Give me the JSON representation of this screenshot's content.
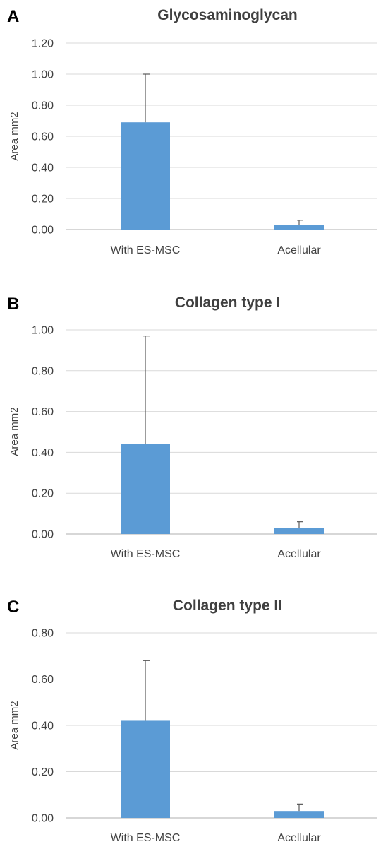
{
  "chart_data": [
    {
      "type": "bar",
      "panel": "A",
      "title": "Glycosaminoglycan",
      "xlabel": "",
      "ylabel": "Area mm2",
      "categories": [
        "With ES-MSC",
        "Acellular"
      ],
      "values": [
        0.69,
        0.03
      ],
      "error_upper": [
        1.0,
        0.06
      ],
      "ylim": [
        0,
        1.2
      ],
      "yticks": [
        "0.00",
        "0.20",
        "0.40",
        "0.60",
        "0.80",
        "1.00",
        "1.20"
      ],
      "grid": true,
      "bar_color": "#5b9bd5"
    },
    {
      "type": "bar",
      "panel": "B",
      "title": "Collagen type I",
      "xlabel": "",
      "ylabel": "Area mm2",
      "categories": [
        "With ES-MSC",
        "Acellular"
      ],
      "values": [
        0.44,
        0.03
      ],
      "error_upper": [
        0.97,
        0.06
      ],
      "ylim": [
        0,
        1.0
      ],
      "yticks": [
        "0.00",
        "0.20",
        "0.40",
        "0.60",
        "0.80",
        "1.00"
      ],
      "grid": true,
      "bar_color": "#5b9bd5"
    },
    {
      "type": "bar",
      "panel": "C",
      "title": "Collagen type II",
      "xlabel": "",
      "ylabel": "Area mm2",
      "categories": [
        "With ES-MSC",
        "Acellular"
      ],
      "values": [
        0.42,
        0.03
      ],
      "error_upper": [
        0.68,
        0.06
      ],
      "ylim": [
        0,
        0.8
      ],
      "yticks": [
        "0.00",
        "0.20",
        "0.40",
        "0.60",
        "0.80"
      ],
      "grid": true,
      "bar_color": "#5b9bd5"
    }
  ]
}
